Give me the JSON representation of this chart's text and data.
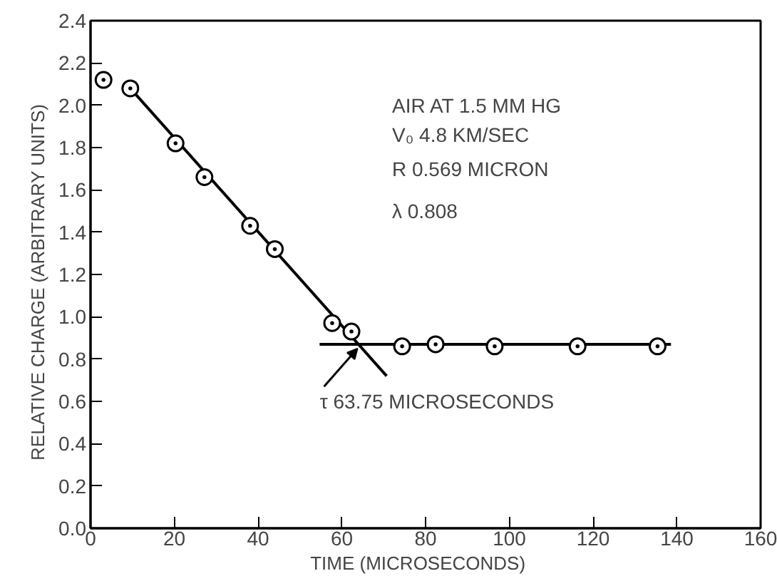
{
  "chart_data": {
    "type": "scatter",
    "xlabel": "TIME    (MICROSECONDS)",
    "ylabel": "RELATIVE  CHARGE  (ARBITRARY  UNITS)",
    "xlim": [
      0,
      160
    ],
    "ylim": [
      0,
      2.4
    ],
    "xticks": [
      0,
      20,
      40,
      60,
      80,
      100,
      120,
      140,
      160
    ],
    "yticks": [
      {
        "value": 0,
        "label": "0.0"
      },
      0.2,
      0.4,
      0.6,
      0.8,
      {
        "value": 1,
        "label": "1.0"
      },
      1.2,
      1.4,
      1.6,
      1.8,
      {
        "value": 2,
        "label": "2.0"
      },
      2.2,
      2.4
    ],
    "grid": false,
    "series": [
      {
        "marker": "circle",
        "color": "#000000",
        "x": [
          3.1,
          9.5,
          20.3,
          27.2,
          38.1,
          44.0,
          57.7,
          62.3,
          74.4,
          82.4,
          96.5,
          116.3,
          135.4
        ],
        "values": [
          2.12,
          2.08,
          1.82,
          1.66,
          1.43,
          1.32,
          0.97,
          0.93,
          0.86,
          0.87,
          0.86,
          0.86,
          0.86
        ]
      },
      {
        "type": "line",
        "line_style": "solid",
        "color": "#000000",
        "x": [
          9.5,
          70.7
        ],
        "values": [
          2.08,
          0.72
        ]
      },
      {
        "type": "line",
        "line_style": "solid",
        "color": "#000000",
        "x": [
          54.7,
          138.6
        ],
        "values": [
          0.87,
          0.87
        ]
      }
    ],
    "annotations": [
      "AIR  AT  1.5  MM  HG",
      "V₀    4.8  KM/SEC",
      "R     0.569  MICRON",
      "λ     0.808",
      {
        "text": "τ    63.75  MICROSECONDS",
        "x": 63.75,
        "y": 0.87
      }
    ]
  }
}
